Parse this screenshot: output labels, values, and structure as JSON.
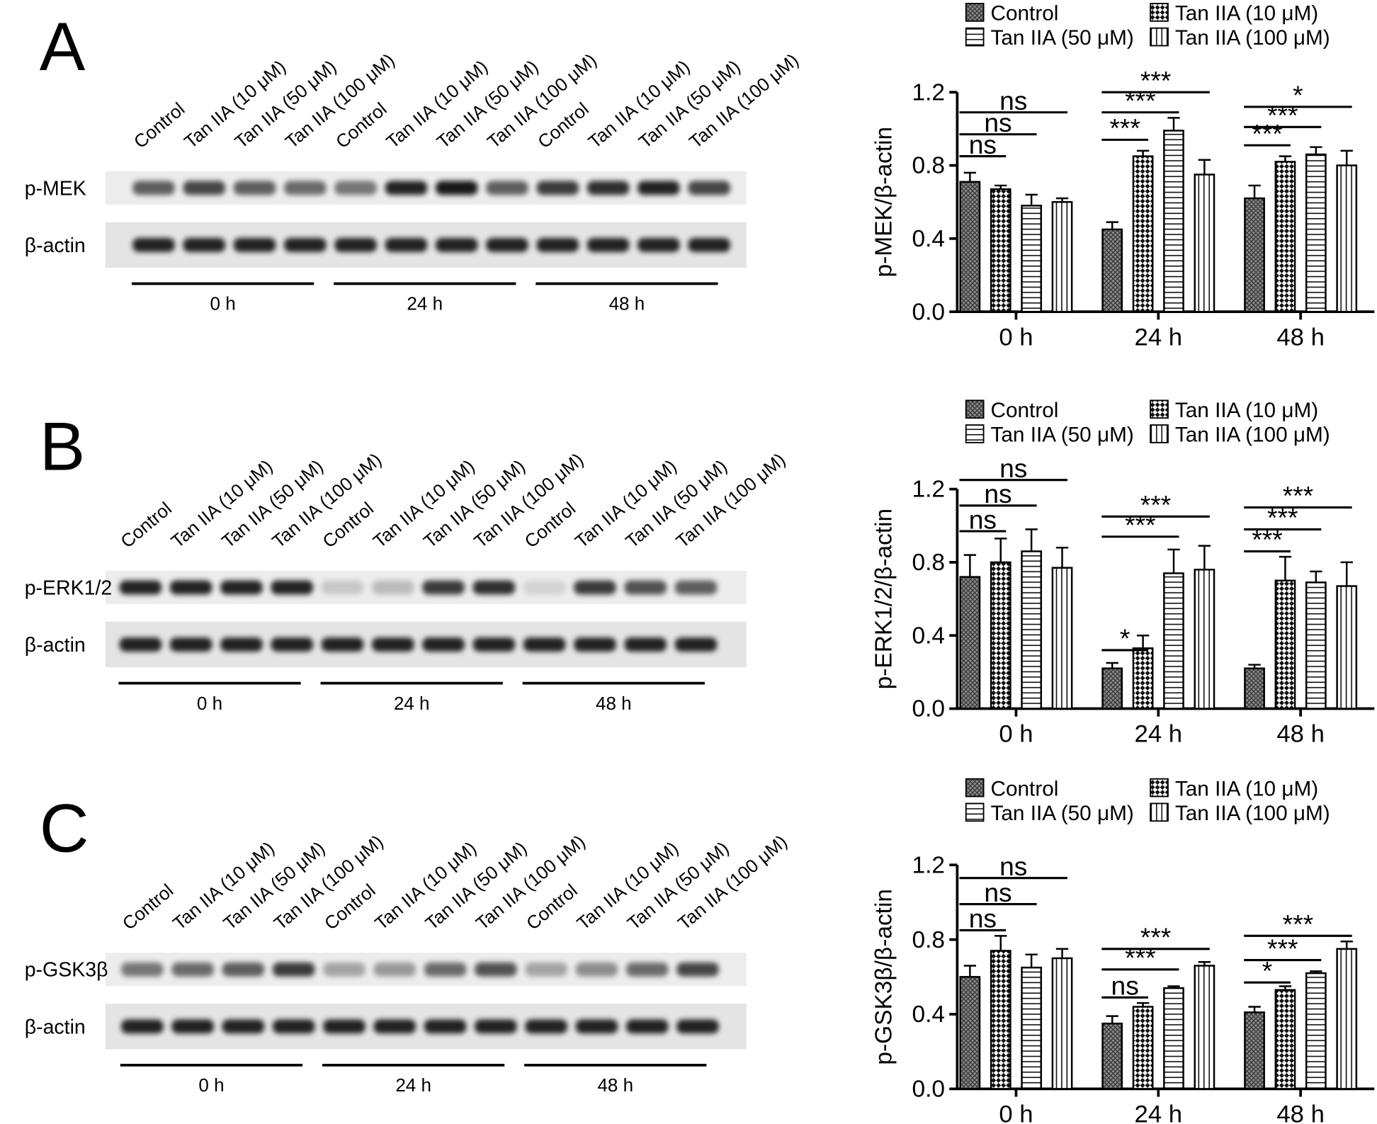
{
  "panels": [
    {
      "letter": "A",
      "blot": {
        "lanes": [
          "Control",
          "Tan IIA (10 μM)",
          "Tan IIA (50 μM)",
          "Tan IIA (100 μM)",
          "Control",
          "Tan IIA (10 μM)",
          "Tan IIA (50 μM)",
          "Tan IIA (100 μM)",
          "Control",
          "Tan IIA (10 μM)",
          "Tan IIA (50 μM)",
          "Tan IIA (100 μM)"
        ],
        "rows": [
          "p-MEK",
          "β-actin"
        ],
        "times": [
          "0 h",
          "24 h",
          "48 h"
        ]
      }
    },
    {
      "letter": "B",
      "blot": {
        "lanes": [
          "Control",
          "Tan IIA (10 μM)",
          "Tan IIA (50 μM)",
          "Tan IIA (100 μM)",
          "Control",
          "Tan IIA (10 μM)",
          "Tan IIA (50 μM)",
          "Tan IIA (100 μM)",
          "Control",
          "Tan IIA (10 μM)",
          "Tan IIA (50 μM)",
          "Tan IIA (100 μM)"
        ],
        "rows": [
          "p-ERK1/2",
          "β-actin"
        ],
        "times": [
          "0 h",
          "24 h",
          "48 h"
        ]
      }
    },
    {
      "letter": "C",
      "blot": {
        "lanes": [
          "Control",
          "Tan IIA (10 μM)",
          "Tan IIA (50 μM)",
          "Tan IIA (100 μM)",
          "Control",
          "Tan IIA (10 μM)",
          "Tan IIA (50 μM)",
          "Tan IIA (100 μM)",
          "Control",
          "Tan IIA (10 μM)",
          "Tan IIA (50 μM)",
          "Tan IIA (100 μM)"
        ],
        "rows": [
          "p-GSK3β",
          "β-actin"
        ],
        "times": [
          "0 h",
          "24 h",
          "48 h"
        ]
      }
    }
  ],
  "chart_data": [
    {
      "type": "bar",
      "ylabel": "p-MEK/β-actin",
      "categories": [
        "0 h",
        "24 h",
        "48 h"
      ],
      "series": [
        {
          "name": "Control",
          "pattern": "crosshatch",
          "values": [
            0.71,
            0.45,
            0.62
          ],
          "errors": [
            0.05,
            0.04,
            0.07
          ]
        },
        {
          "name": "Tan IIA (10 μM)",
          "pattern": "checker",
          "values": [
            0.67,
            0.85,
            0.82
          ],
          "errors": [
            0.02,
            0.03,
            0.03
          ]
        },
        {
          "name": "Tan IIA (50 μM)",
          "pattern": "hlines",
          "values": [
            0.58,
            0.99,
            0.86
          ],
          "errors": [
            0.06,
            0.07,
            0.04
          ]
        },
        {
          "name": "Tan IIA (100 μM)",
          "pattern": "vlines",
          "values": [
            0.6,
            0.75,
            0.8
          ],
          "errors": [
            0.02,
            0.08,
            0.08
          ]
        }
      ],
      "ylim": [
        0,
        1.2
      ],
      "yticks": [
        {
          "value": 0,
          "label": "0.0"
        },
        0.4,
        0.8,
        1.2
      ],
      "annotations": [
        "ns",
        "ns",
        "ns",
        "***",
        "***",
        "***",
        "***",
        "***",
        "*"
      ]
    },
    {
      "type": "bar",
      "ylabel": "p-ERK1/2/β-actin",
      "categories": [
        "0 h",
        "24 h",
        "48 h"
      ],
      "series": [
        {
          "name": "Control",
          "pattern": "crosshatch",
          "values": [
            0.72,
            0.22,
            0.22
          ],
          "errors": [
            0.12,
            0.03,
            0.02
          ]
        },
        {
          "name": "Tan IIA (10 μM)",
          "pattern": "checker",
          "values": [
            0.8,
            0.33,
            0.7
          ],
          "errors": [
            0.13,
            0.07,
            0.13
          ]
        },
        {
          "name": "Tan IIA (50 μM)",
          "pattern": "hlines",
          "values": [
            0.86,
            0.74,
            0.69
          ],
          "errors": [
            0.12,
            0.13,
            0.06
          ]
        },
        {
          "name": "Tan IIA (100 μM)",
          "pattern": "vlines",
          "values": [
            0.77,
            0.76,
            0.67
          ],
          "errors": [
            0.11,
            0.13,
            0.13
          ]
        }
      ],
      "ylim": [
        0,
        1.2
      ],
      "yticks": [
        {
          "value": 0,
          "label": "0.0"
        },
        0.4,
        0.8,
        1.2
      ],
      "annotations": [
        "ns",
        "ns",
        "ns",
        "*",
        "***",
        "***",
        "***",
        "***",
        "***"
      ]
    },
    {
      "type": "bar",
      "ylabel": "p-GSK3β/β-actin",
      "categories": [
        "0 h",
        "24 h",
        "48 h"
      ],
      "series": [
        {
          "name": "Control",
          "pattern": "crosshatch",
          "values": [
            0.6,
            0.35,
            0.41
          ],
          "errors": [
            0.06,
            0.04,
            0.03
          ]
        },
        {
          "name": "Tan IIA (10 μM)",
          "pattern": "checker",
          "values": [
            0.74,
            0.44,
            0.53
          ],
          "errors": [
            0.08,
            0.02,
            0.02
          ]
        },
        {
          "name": "Tan IIA (50 μM)",
          "pattern": "hlines",
          "values": [
            0.65,
            0.54,
            0.62
          ],
          "errors": [
            0.07,
            0.01,
            0.01
          ]
        },
        {
          "name": "Tan IIA (100 μM)",
          "pattern": "vlines",
          "values": [
            0.7,
            0.66,
            0.75
          ],
          "errors": [
            0.05,
            0.02,
            0.04
          ]
        }
      ],
      "ylim": [
        0,
        1.2
      ],
      "yticks": [
        {
          "value": 0,
          "label": "0.0"
        },
        0.4,
        0.8,
        1.2
      ],
      "annotations": [
        "ns",
        "ns",
        "ns",
        "ns",
        "***",
        "***",
        "*",
        "***",
        "***"
      ]
    }
  ]
}
